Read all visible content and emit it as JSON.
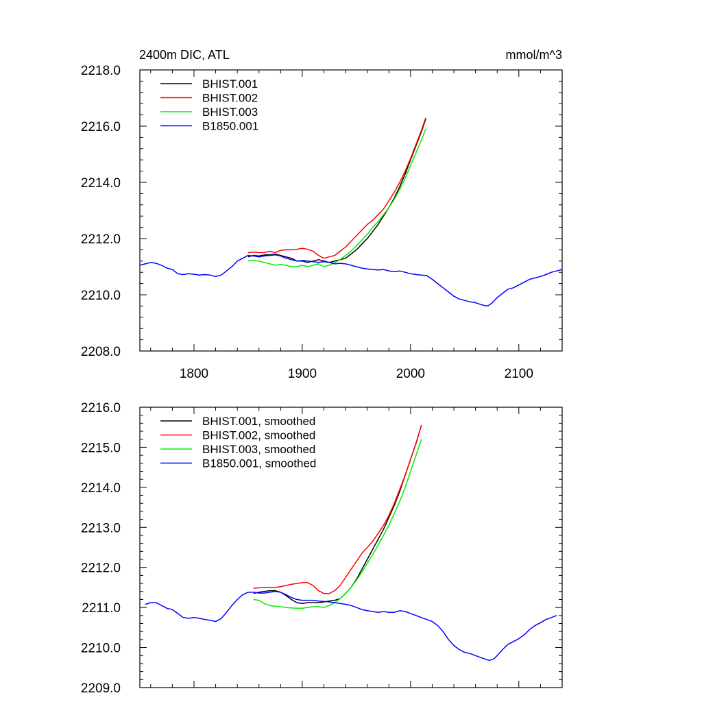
{
  "chart_data": [
    {
      "type": "line",
      "title": "2400m DIC, ATL",
      "units": "mmol/m^3",
      "xlim": [
        1750,
        2140
      ],
      "ylim": [
        2208,
        2218
      ],
      "x_ticks": [
        1800,
        1900,
        2000,
        2100
      ],
      "x_tick_labels": [
        "1800",
        "1900",
        "2000",
        "2100"
      ],
      "y_ticks": [
        2208,
        2210,
        2212,
        2214,
        2216,
        2218
      ],
      "y_tick_labels": [
        "2208.0",
        "2210.0",
        "2212.0",
        "2214.0",
        "2216.0",
        "2218.0"
      ],
      "legend_position": "top-left",
      "series": [
        {
          "name": "BHIST.001",
          "color": "#000000",
          "x": [
            1850,
            1855,
            1860,
            1865,
            1870,
            1875,
            1880,
            1885,
            1890,
            1895,
            1900,
            1905,
            1910,
            1915,
            1920,
            1925,
            1930,
            1935,
            1940,
            1945,
            1950,
            1955,
            1960,
            1965,
            1970,
            1975,
            1980,
            1985,
            1990,
            1995,
            2000,
            2005,
            2010,
            2014
          ],
          "y": [
            2211.35,
            2211.4,
            2211.38,
            2211.42,
            2211.42,
            2211.45,
            2211.4,
            2211.35,
            2211.3,
            2211.2,
            2211.2,
            2211.15,
            2211.2,
            2211.25,
            2211.2,
            2211.15,
            2211.2,
            2211.25,
            2211.3,
            2211.45,
            2211.6,
            2211.8,
            2212.0,
            2212.25,
            2212.5,
            2212.8,
            2213.1,
            2213.45,
            2213.85,
            2214.3,
            2214.8,
            2215.3,
            2215.8,
            2216.25
          ]
        },
        {
          "name": "BHIST.002",
          "color": "#ff0000",
          "x": [
            1850,
            1855,
            1860,
            1865,
            1870,
            1875,
            1880,
            1885,
            1890,
            1895,
            1900,
            1905,
            1910,
            1915,
            1920,
            1925,
            1930,
            1935,
            1940,
            1945,
            1950,
            1955,
            1960,
            1965,
            1970,
            1975,
            1980,
            1985,
            1990,
            1995,
            2000,
            2005,
            2010,
            2014
          ],
          "y": [
            2211.5,
            2211.52,
            2211.5,
            2211.5,
            2211.55,
            2211.5,
            2211.58,
            2211.6,
            2211.6,
            2211.62,
            2211.65,
            2211.62,
            2211.55,
            2211.4,
            2211.3,
            2211.35,
            2211.4,
            2211.55,
            2211.7,
            2211.9,
            2212.1,
            2212.3,
            2212.5,
            2212.65,
            2212.85,
            2213.05,
            2213.35,
            2213.65,
            2214.0,
            2214.4,
            2214.85,
            2215.35,
            2215.85,
            2216.3
          ]
        },
        {
          "name": "BHIST.003",
          "color": "#00ee00",
          "x": [
            1850,
            1855,
            1860,
            1865,
            1870,
            1875,
            1880,
            1885,
            1890,
            1895,
            1900,
            1905,
            1910,
            1915,
            1920,
            1925,
            1930,
            1935,
            1940,
            1945,
            1950,
            1955,
            1960,
            1965,
            1970,
            1975,
            1980,
            1985,
            1990,
            1995,
            2000,
            2005,
            2010,
            2014
          ],
          "y": [
            2211.2,
            2211.22,
            2211.2,
            2211.15,
            2211.1,
            2211.05,
            2211.08,
            2211.05,
            2211.0,
            2211.0,
            2211.05,
            2211.0,
            2211.05,
            2211.1,
            2211.0,
            2211.05,
            2211.15,
            2211.25,
            2211.4,
            2211.55,
            2211.75,
            2211.95,
            2212.15,
            2212.4,
            2212.6,
            2212.85,
            2213.1,
            2213.4,
            2213.75,
            2214.15,
            2214.6,
            2215.05,
            2215.5,
            2215.9
          ]
        },
        {
          "name": "B1850.001",
          "color": "#0000ff",
          "x": [
            1750,
            1755,
            1760,
            1765,
            1770,
            1775,
            1780,
            1785,
            1790,
            1795,
            1800,
            1805,
            1810,
            1815,
            1820,
            1825,
            1830,
            1835,
            1840,
            1845,
            1850,
            1855,
            1860,
            1865,
            1870,
            1875,
            1880,
            1885,
            1890,
            1895,
            1900,
            1905,
            1910,
            1915,
            1920,
            1925,
            1930,
            1935,
            1940,
            1945,
            1950,
            1955,
            1960,
            1965,
            1970,
            1975,
            1980,
            1985,
            1990,
            1995,
            2000,
            2005,
            2010,
            2015,
            2020,
            2025,
            2030,
            2035,
            2040,
            2045,
            2050,
            2055,
            2060,
            2065,
            2070,
            2072,
            2075,
            2080,
            2085,
            2090,
            2095,
            2100,
            2105,
            2110,
            2115,
            2120,
            2125,
            2130,
            2135,
            2140
          ],
          "y": [
            2211.05,
            2211.1,
            2211.15,
            2211.12,
            2211.05,
            2210.95,
            2210.9,
            2210.75,
            2210.72,
            2210.75,
            2210.73,
            2210.7,
            2210.72,
            2210.7,
            2210.65,
            2210.7,
            2210.85,
            2211.0,
            2211.2,
            2211.3,
            2211.4,
            2211.38,
            2211.35,
            2211.38,
            2211.4,
            2211.42,
            2211.38,
            2211.3,
            2211.25,
            2211.2,
            2211.22,
            2211.2,
            2211.18,
            2211.15,
            2211.18,
            2211.15,
            2211.1,
            2211.12,
            2211.1,
            2211.05,
            2211.0,
            2210.95,
            2210.92,
            2210.9,
            2210.88,
            2210.9,
            2210.85,
            2210.82,
            2210.85,
            2210.8,
            2210.75,
            2210.72,
            2210.7,
            2210.68,
            2210.55,
            2210.4,
            2210.25,
            2210.1,
            2209.95,
            2209.85,
            2209.8,
            2209.75,
            2209.72,
            2209.65,
            2209.6,
            2209.62,
            2209.7,
            2209.9,
            2210.05,
            2210.2,
            2210.25,
            2210.35,
            2210.45,
            2210.55,
            2210.6,
            2210.65,
            2210.72,
            2210.8,
            2210.85,
            2210.9
          ]
        }
      ]
    },
    {
      "type": "line",
      "title": "",
      "units": "",
      "xlim": [
        1750,
        2140
      ],
      "ylim": [
        2209,
        2216
      ],
      "x_ticks": [
        1800,
        1900,
        2000,
        2100
      ],
      "x_tick_labels": [],
      "y_ticks": [
        2209,
        2210,
        2211,
        2212,
        2213,
        2214,
        2215,
        2216
      ],
      "y_tick_labels": [
        "2209.0",
        "2210.0",
        "2211.0",
        "2212.0",
        "2213.0",
        "2214.0",
        "2215.0",
        "2216.0"
      ],
      "legend_position": "top-left",
      "series": [
        {
          "name": "BHIST.001, smoothed",
          "color": "#000000",
          "x": [
            1855,
            1860,
            1865,
            1870,
            1875,
            1880,
            1885,
            1890,
            1895,
            1900,
            1905,
            1910,
            1915,
            1920,
            1925,
            1930,
            1935,
            1940,
            1945,
            1950,
            1955,
            1960,
            1965,
            1970,
            1975,
            1980,
            1985,
            1990,
            1995,
            2000,
            2005,
            2010
          ],
          "y": [
            2211.35,
            2211.38,
            2211.4,
            2211.42,
            2211.42,
            2211.38,
            2211.3,
            2211.2,
            2211.12,
            2211.1,
            2211.12,
            2211.12,
            2211.12,
            2211.14,
            2211.16,
            2211.18,
            2211.22,
            2211.35,
            2211.5,
            2211.7,
            2211.95,
            2212.2,
            2212.45,
            2212.7,
            2212.95,
            2213.25,
            2213.55,
            2213.9,
            2214.3,
            2214.7,
            2215.1,
            2215.55
          ]
        },
        {
          "name": "BHIST.002, smoothed",
          "color": "#ff0000",
          "x": [
            1855,
            1860,
            1865,
            1870,
            1875,
            1880,
            1885,
            1890,
            1895,
            1900,
            1905,
            1910,
            1915,
            1920,
            1925,
            1930,
            1935,
            1940,
            1945,
            1950,
            1955,
            1960,
            1965,
            1970,
            1975,
            1980,
            1985,
            1990,
            1995,
            2000,
            2005,
            2010
          ],
          "y": [
            2211.48,
            2211.49,
            2211.5,
            2211.5,
            2211.5,
            2211.52,
            2211.55,
            2211.58,
            2211.6,
            2211.62,
            2211.62,
            2211.55,
            2211.42,
            2211.35,
            2211.35,
            2211.42,
            2211.55,
            2211.75,
            2211.95,
            2212.15,
            2212.35,
            2212.5,
            2212.65,
            2212.85,
            2213.05,
            2213.3,
            2213.6,
            2213.95,
            2214.3,
            2214.7,
            2215.1,
            2215.55
          ]
        },
        {
          "name": "BHIST.003, smoothed",
          "color": "#00ee00",
          "x": [
            1855,
            1860,
            1865,
            1870,
            1875,
            1880,
            1885,
            1890,
            1895,
            1900,
            1905,
            1910,
            1915,
            1920,
            1925,
            1930,
            1935,
            1940,
            1945,
            1950,
            1955,
            1960,
            1965,
            1970,
            1975,
            1980,
            1985,
            1990,
            1995,
            2000,
            2005,
            2010
          ],
          "y": [
            2211.2,
            2211.18,
            2211.1,
            2211.05,
            2211.03,
            2211.02,
            2211.0,
            2210.99,
            2210.98,
            2210.98,
            2211.0,
            2211.02,
            2211.02,
            2211.0,
            2211.05,
            2211.12,
            2211.22,
            2211.35,
            2211.5,
            2211.68,
            2211.88,
            2212.1,
            2212.32,
            2212.55,
            2212.8,
            2213.05,
            2213.35,
            2213.65,
            2214.0,
            2214.4,
            2214.8,
            2215.2
          ]
        },
        {
          "name": "B1850.001, smoothed",
          "color": "#0000ff",
          "x": [
            1755,
            1760,
            1765,
            1770,
            1775,
            1780,
            1785,
            1790,
            1795,
            1800,
            1805,
            1810,
            1815,
            1820,
            1825,
            1830,
            1835,
            1840,
            1845,
            1850,
            1855,
            1860,
            1865,
            1870,
            1875,
            1880,
            1885,
            1890,
            1895,
            1900,
            1905,
            1910,
            1915,
            1920,
            1925,
            1930,
            1935,
            1940,
            1945,
            1950,
            1955,
            1960,
            1965,
            1970,
            1975,
            1980,
            1985,
            1990,
            1995,
            2000,
            2005,
            2010,
            2015,
            2020,
            2025,
            2030,
            2035,
            2040,
            2045,
            2050,
            2055,
            2060,
            2065,
            2070,
            2073,
            2077,
            2080,
            2085,
            2090,
            2095,
            2100,
            2105,
            2110,
            2115,
            2120,
            2125,
            2130,
            2135
          ],
          "y": [
            2211.08,
            2211.12,
            2211.12,
            2211.05,
            2210.98,
            2210.95,
            2210.85,
            2210.75,
            2210.73,
            2210.75,
            2210.73,
            2210.7,
            2210.68,
            2210.65,
            2210.72,
            2210.88,
            2211.05,
            2211.2,
            2211.32,
            2211.38,
            2211.38,
            2211.36,
            2211.36,
            2211.38,
            2211.4,
            2211.38,
            2211.32,
            2211.25,
            2211.2,
            2211.18,
            2211.18,
            2211.18,
            2211.16,
            2211.15,
            2211.14,
            2211.12,
            2211.1,
            2211.08,
            2211.05,
            2211.0,
            2210.95,
            2210.92,
            2210.9,
            2210.88,
            2210.9,
            2210.88,
            2210.88,
            2210.92,
            2210.9,
            2210.85,
            2210.8,
            2210.75,
            2210.7,
            2210.65,
            2210.55,
            2210.4,
            2210.2,
            2210.05,
            2209.95,
            2209.88,
            2209.85,
            2209.8,
            2209.75,
            2209.7,
            2209.68,
            2209.72,
            2209.8,
            2209.95,
            2210.08,
            2210.15,
            2210.22,
            2210.32,
            2210.45,
            2210.55,
            2210.62,
            2210.7,
            2210.75,
            2210.8
          ]
        }
      ]
    }
  ]
}
